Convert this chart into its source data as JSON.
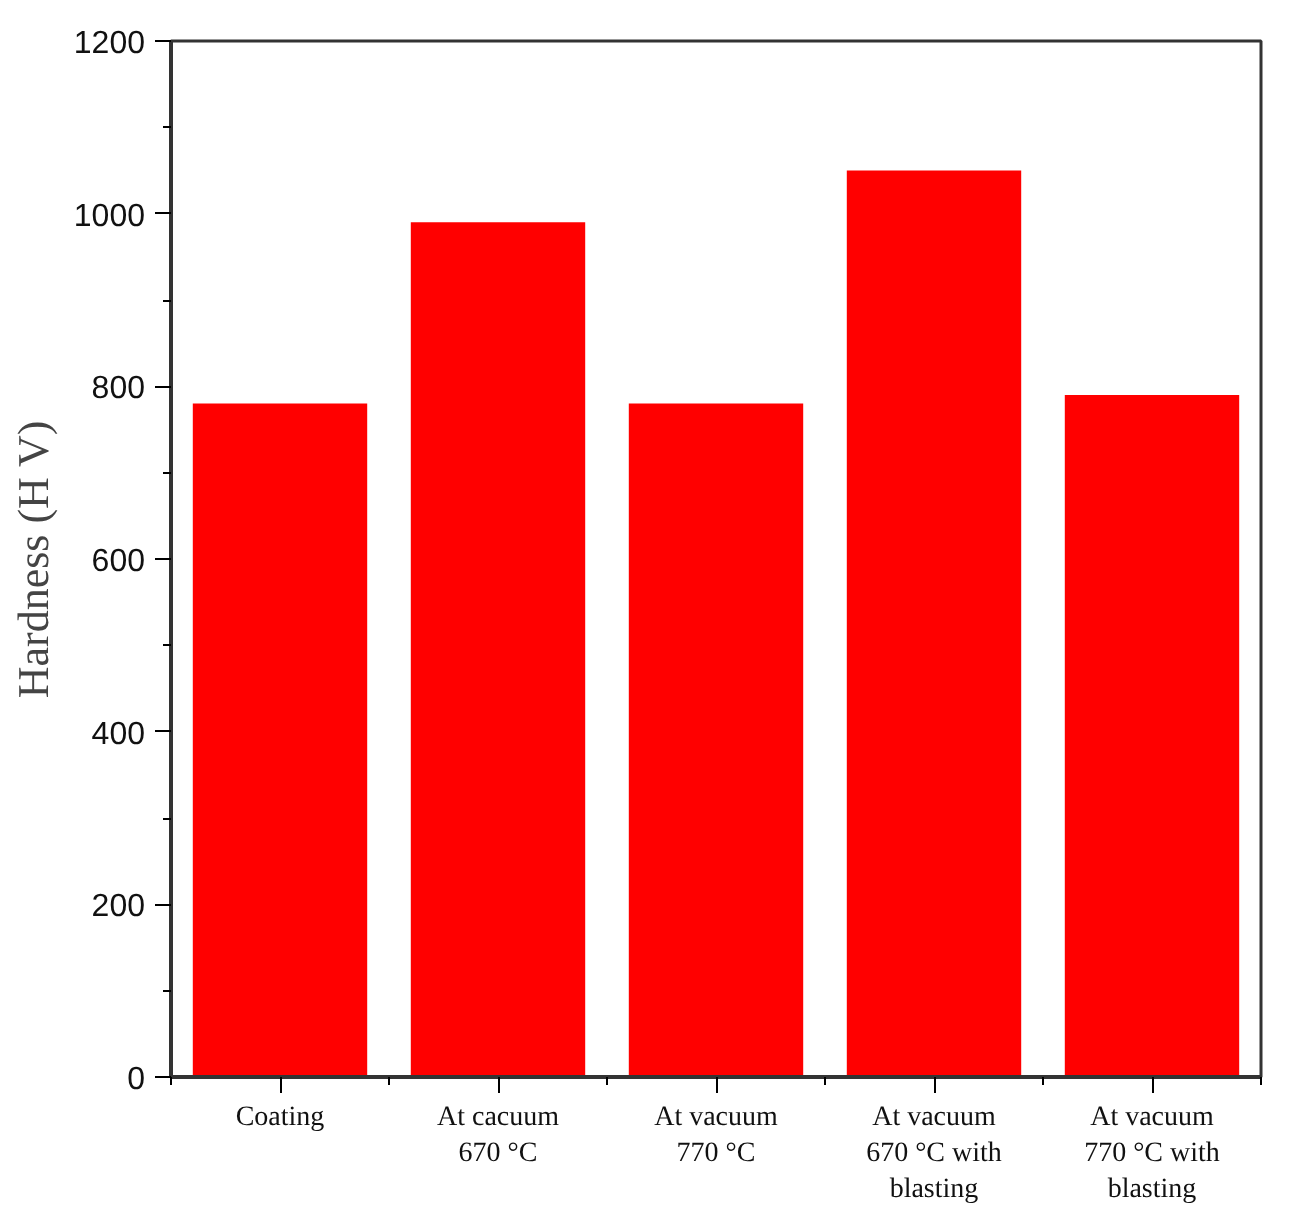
{
  "chart_data": {
    "type": "bar",
    "ylabel": "Hardness (H V)",
    "categories": [
      "Coating",
      "At cacuum\n670 °C",
      "At vacuum\n770 °C",
      "At vacuum\n670 °C with\nblasting",
      "At vacuum\n770 °C with\nblasting"
    ],
    "values": [
      780,
      990,
      780,
      1050,
      790
    ],
    "color": "#ff0000",
    "ylim": [
      0,
      1200
    ],
    "yticks": [
      0,
      200,
      400,
      600,
      800,
      1000,
      1200
    ],
    "grid": false
  }
}
